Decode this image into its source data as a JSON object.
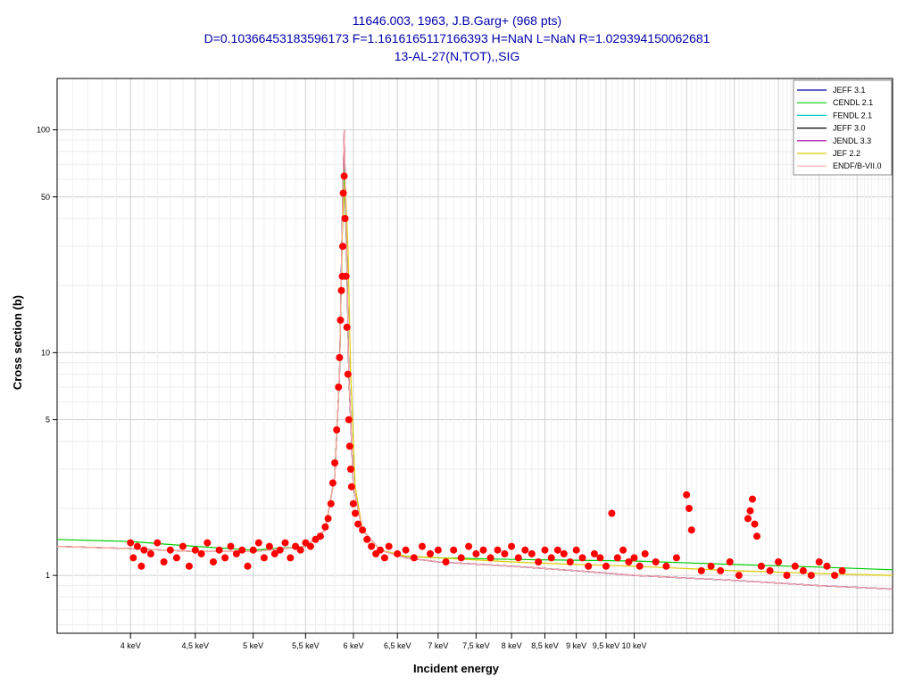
{
  "chart_data": {
    "type": "scatter",
    "title_lines": [
      "11646.003, 1963, J.B.Garg+ (968 pts)",
      "D=0.10366453183596173 F=1.1616165117166393 H=NaN L=NaN R=1.029394150062681",
      "13-AL-27(N,TOT),,SIG"
    ],
    "xlabel": "Incident energy",
    "ylabel": "Cross section (b)",
    "x_scale": "log",
    "y_scale": "log",
    "x_unit": "keV",
    "xlim": [
      3.5,
      16
    ],
    "ylim": [
      0.55,
      170
    ],
    "grid": true,
    "legend_position": "top-right",
    "x_ticks": [
      {
        "value": 4,
        "label": "4 keV"
      },
      {
        "value": 4.5,
        "label": "4,5 keV"
      },
      {
        "value": 5,
        "label": "5 keV"
      },
      {
        "value": 5.5,
        "label": "5,5 keV"
      },
      {
        "value": 6,
        "label": "6 keV"
      },
      {
        "value": 6.5,
        "label": "6,5 keV"
      },
      {
        "value": 7,
        "label": "7 keV"
      },
      {
        "value": 7.5,
        "label": "7,5 keV"
      },
      {
        "value": 8,
        "label": "8 keV"
      },
      {
        "value": 8.5,
        "label": "8,5 keV"
      },
      {
        "value": 9,
        "label": "9 keV"
      },
      {
        "value": 9.5,
        "label": "9,5 keV"
      },
      {
        "value": 10,
        "label": "10 keV"
      }
    ],
    "y_ticks": [
      {
        "value": 1,
        "label": "1"
      },
      {
        "value": 5,
        "label": "5"
      },
      {
        "value": 10,
        "label": "10"
      },
      {
        "value": 50,
        "label": "50"
      },
      {
        "value": 100,
        "label": "100"
      }
    ],
    "evaluations": [
      {
        "name": "JEFF 3.1",
        "color": "#0000aa",
        "x": [
          3.5,
          4,
          4.5,
          5,
          5.5,
          5.7,
          5.8,
          5.85,
          5.88,
          5.9,
          5.92,
          5.95,
          6,
          6.1,
          6.3,
          6.6,
          7,
          8,
          9,
          10,
          12,
          14,
          16
        ],
        "y": [
          1.35,
          1.32,
          1.28,
          1.28,
          1.35,
          1.6,
          2.8,
          8,
          40,
          100,
          40,
          8,
          2.5,
          1.6,
          1.3,
          1.2,
          1.15,
          1.1,
          1.05,
          1.0,
          0.95,
          0.9,
          0.87
        ]
      },
      {
        "name": "CENDL 2.1",
        "color": "#00cc00",
        "x": [
          3.5,
          4,
          4.5,
          5,
          5.5,
          5.7,
          5.8,
          5.85,
          5.88,
          5.9,
          5.92,
          5.95,
          6,
          6.1,
          6.3,
          6.6,
          7,
          8,
          9,
          10,
          12,
          14,
          16
        ],
        "y": [
          1.45,
          1.42,
          1.35,
          1.3,
          1.35,
          1.6,
          2.8,
          8,
          35,
          70,
          35,
          8,
          2.5,
          1.6,
          1.3,
          1.22,
          1.2,
          1.18,
          1.17,
          1.16,
          1.12,
          1.09,
          1.06
        ]
      },
      {
        "name": "FENDL 2.1",
        "color": "#00cccc",
        "x": [
          3.5,
          4,
          4.5,
          5,
          5.5,
          5.7,
          5.8,
          5.85,
          5.88,
          5.9,
          5.92,
          5.95,
          6,
          6.1,
          6.3,
          6.6,
          7,
          8,
          9,
          10,
          12,
          14,
          16
        ],
        "y": [
          1.35,
          1.32,
          1.28,
          1.28,
          1.35,
          1.6,
          2.8,
          8,
          40,
          95,
          40,
          8,
          2.5,
          1.6,
          1.3,
          1.2,
          1.15,
          1.1,
          1.05,
          1.0,
          0.95,
          0.9,
          0.87
        ]
      },
      {
        "name": "JEFF 3.0",
        "color": "#000000",
        "x": [
          3.5,
          4,
          4.5,
          5,
          5.5,
          5.7,
          5.8,
          5.85,
          5.88,
          5.9,
          5.92,
          5.95,
          6,
          6.1,
          6.3,
          6.6,
          7,
          8,
          9,
          10,
          12,
          14,
          16
        ],
        "y": [
          1.35,
          1.32,
          1.28,
          1.28,
          1.35,
          1.6,
          2.8,
          8,
          40,
          100,
          40,
          8,
          2.5,
          1.6,
          1.3,
          1.2,
          1.15,
          1.1,
          1.05,
          1.0,
          0.95,
          0.9,
          0.87
        ]
      },
      {
        "name": "JENDL 3.3",
        "color": "#aa00aa",
        "x": [
          3.5,
          4,
          4.5,
          5,
          5.5,
          5.7,
          5.8,
          5.85,
          5.88,
          5.9,
          5.92,
          5.95,
          6,
          6.1,
          6.3,
          6.6,
          7,
          8,
          9,
          10,
          12,
          14,
          16
        ],
        "y": [
          1.35,
          1.32,
          1.28,
          1.28,
          1.35,
          1.6,
          2.8,
          8,
          40,
          98,
          40,
          8,
          2.5,
          1.6,
          1.3,
          1.2,
          1.15,
          1.1,
          1.05,
          1.0,
          0.95,
          0.9,
          0.87
        ]
      },
      {
        "name": "JEF 2.2",
        "color": "#ddcc00",
        "x": [
          3.5,
          4,
          4.5,
          5,
          5.5,
          5.7,
          5.8,
          5.85,
          5.88,
          5.91,
          5.94,
          5.97,
          6.02,
          6.1,
          6.3,
          6.6,
          7,
          8,
          9,
          10,
          12,
          14,
          16
        ],
        "y": [
          1.35,
          1.32,
          1.28,
          1.28,
          1.35,
          1.6,
          2.8,
          8,
          35,
          60,
          30,
          8,
          2.5,
          1.6,
          1.3,
          1.22,
          1.2,
          1.15,
          1.12,
          1.1,
          1.05,
          1.02,
          1.0
        ]
      },
      {
        "name": "ENDF/B-VII.0",
        "color": "#ffaaaa",
        "x": [
          3.5,
          4,
          4.5,
          5,
          5.5,
          5.7,
          5.8,
          5.85,
          5.88,
          5.9,
          5.92,
          5.95,
          6,
          6.1,
          6.3,
          6.6,
          7,
          8,
          9,
          10,
          12,
          14,
          16
        ],
        "y": [
          1.35,
          1.32,
          1.28,
          1.28,
          1.35,
          1.6,
          2.8,
          8,
          40,
          100,
          40,
          8,
          2.5,
          1.6,
          1.3,
          1.2,
          1.15,
          1.1,
          1.05,
          1.0,
          0.95,
          0.9,
          0.87
        ]
      }
    ],
    "experimental": {
      "marker_color": "#ff0000",
      "points": [
        [
          4.0,
          1.4
        ],
        [
          4.02,
          1.2
        ],
        [
          4.05,
          1.35
        ],
        [
          4.08,
          1.1
        ],
        [
          4.1,
          1.3
        ],
        [
          4.15,
          1.25
        ],
        [
          4.2,
          1.4
        ],
        [
          4.25,
          1.15
        ],
        [
          4.3,
          1.3
        ],
        [
          4.35,
          1.2
        ],
        [
          4.4,
          1.35
        ],
        [
          4.45,
          1.1
        ],
        [
          4.5,
          1.3
        ],
        [
          4.55,
          1.25
        ],
        [
          4.6,
          1.4
        ],
        [
          4.65,
          1.15
        ],
        [
          4.7,
          1.3
        ],
        [
          4.75,
          1.2
        ],
        [
          4.8,
          1.35
        ],
        [
          4.85,
          1.25
        ],
        [
          4.9,
          1.3
        ],
        [
          4.95,
          1.1
        ],
        [
          5.0,
          1.3
        ],
        [
          5.05,
          1.4
        ],
        [
          5.1,
          1.2
        ],
        [
          5.15,
          1.35
        ],
        [
          5.2,
          1.25
        ],
        [
          5.25,
          1.3
        ],
        [
          5.3,
          1.4
        ],
        [
          5.35,
          1.2
        ],
        [
          5.4,
          1.35
        ],
        [
          5.45,
          1.3
        ],
        [
          5.5,
          1.4
        ],
        [
          5.55,
          1.35
        ],
        [
          5.6,
          1.45
        ],
        [
          5.65,
          1.5
        ],
        [
          5.7,
          1.65
        ],
        [
          5.73,
          1.8
        ],
        [
          5.76,
          2.1
        ],
        [
          5.78,
          2.6
        ],
        [
          5.8,
          3.2
        ],
        [
          5.82,
          4.5
        ],
        [
          5.84,
          7.0
        ],
        [
          5.85,
          9.5
        ],
        [
          5.86,
          14
        ],
        [
          5.87,
          19
        ],
        [
          5.88,
          22
        ],
        [
          5.885,
          30
        ],
        [
          5.89,
          52
        ],
        [
          5.9,
          62
        ],
        [
          5.91,
          40
        ],
        [
          5.92,
          22
        ],
        [
          5.93,
          13
        ],
        [
          5.94,
          8
        ],
        [
          5.95,
          5
        ],
        [
          5.96,
          3.8
        ],
        [
          5.97,
          3.0
        ],
        [
          5.98,
          2.5
        ],
        [
          6.0,
          2.1
        ],
        [
          6.02,
          1.9
        ],
        [
          6.05,
          1.7
        ],
        [
          6.1,
          1.6
        ],
        [
          6.15,
          1.45
        ],
        [
          6.2,
          1.35
        ],
        [
          6.25,
          1.25
        ],
        [
          6.3,
          1.3
        ],
        [
          6.35,
          1.2
        ],
        [
          6.4,
          1.35
        ],
        [
          6.5,
          1.25
        ],
        [
          6.6,
          1.3
        ],
        [
          6.7,
          1.2
        ],
        [
          6.8,
          1.35
        ],
        [
          6.9,
          1.25
        ],
        [
          7.0,
          1.3
        ],
        [
          7.1,
          1.15
        ],
        [
          7.2,
          1.3
        ],
        [
          7.3,
          1.2
        ],
        [
          7.4,
          1.35
        ],
        [
          7.5,
          1.25
        ],
        [
          7.6,
          1.3
        ],
        [
          7.7,
          1.2
        ],
        [
          7.8,
          1.3
        ],
        [
          7.9,
          1.25
        ],
        [
          8.0,
          1.35
        ],
        [
          8.1,
          1.2
        ],
        [
          8.2,
          1.3
        ],
        [
          8.3,
          1.25
        ],
        [
          8.4,
          1.15
        ],
        [
          8.5,
          1.3
        ],
        [
          8.6,
          1.2
        ],
        [
          8.7,
          1.3
        ],
        [
          8.8,
          1.25
        ],
        [
          8.9,
          1.15
        ],
        [
          9.0,
          1.3
        ],
        [
          9.1,
          1.2
        ],
        [
          9.2,
          1.1
        ],
        [
          9.3,
          1.25
        ],
        [
          9.4,
          1.2
        ],
        [
          9.5,
          1.1
        ],
        [
          9.6,
          1.9
        ],
        [
          9.7,
          1.2
        ],
        [
          9.8,
          1.3
        ],
        [
          9.9,
          1.15
        ],
        [
          10.0,
          1.2
        ],
        [
          10.1,
          1.1
        ],
        [
          10.2,
          1.25
        ],
        [
          10.4,
          1.15
        ],
        [
          10.6,
          1.1
        ],
        [
          10.8,
          1.2
        ],
        [
          11.0,
          2.3
        ],
        [
          11.05,
          2.0
        ],
        [
          11.1,
          1.6
        ],
        [
          11.3,
          1.05
        ],
        [
          11.5,
          1.1
        ],
        [
          11.7,
          1.05
        ],
        [
          11.9,
          1.15
        ],
        [
          12.1,
          1.0
        ],
        [
          12.3,
          1.8
        ],
        [
          12.35,
          1.95
        ],
        [
          12.4,
          2.2
        ],
        [
          12.45,
          1.7
        ],
        [
          12.5,
          1.5
        ],
        [
          12.6,
          1.1
        ],
        [
          12.8,
          1.05
        ],
        [
          13.0,
          1.15
        ],
        [
          13.2,
          1.0
        ],
        [
          13.4,
          1.1
        ],
        [
          13.6,
          1.05
        ],
        [
          13.8,
          1.0
        ],
        [
          14.0,
          1.15
        ],
        [
          14.2,
          1.1
        ],
        [
          14.4,
          1.0
        ],
        [
          14.6,
          1.05
        ]
      ]
    }
  }
}
